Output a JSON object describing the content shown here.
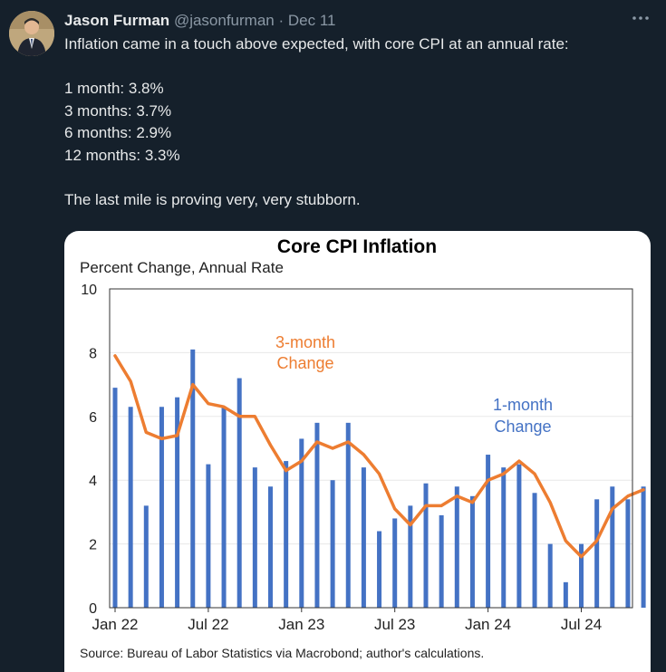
{
  "tweet": {
    "author_name": "Jason Furman",
    "handle": "@jasonfurman",
    "separator": "·",
    "date": "Dec 11",
    "more_icon": "ellipsis-icon",
    "text": {
      "line1": "Inflation came in a touch above expected, with core CPI at an annual rate:",
      "stats": [
        "1 month: 3.8%",
        "3 months: 3.7%",
        "6 months: 2.9%",
        "12 months: 3.3%"
      ],
      "closing": "The last mile is proving very, very stubborn."
    }
  },
  "chart_data": {
    "type": "bar",
    "title": "Core CPI Inflation",
    "subtitle": "Percent Change, Annual Rate",
    "source": "Source: Bureau of Labor Statistics via Macrobond; author's calculations.",
    "x_tick_labels": [
      "Jan 22",
      "Jul 22",
      "Jan 23",
      "Jul 23",
      "Jan 24",
      "Jul 24"
    ],
    "y_tick_labels": [
      "0",
      "2",
      "4",
      "6",
      "8",
      "10"
    ],
    "ylim": [
      0,
      10
    ],
    "months": [
      "Jan 22",
      "Feb 22",
      "Mar 22",
      "Apr 22",
      "May 22",
      "Jun 22",
      "Jul 22",
      "Aug 22",
      "Sep 22",
      "Oct 22",
      "Nov 22",
      "Dec 22",
      "Jan 23",
      "Feb 23",
      "Mar 23",
      "Apr 23",
      "May 23",
      "Jun 23",
      "Jul 23",
      "Aug 23",
      "Sep 23",
      "Oct 23",
      "Nov 23",
      "Dec 23",
      "Jan 24",
      "Feb 24",
      "Mar 24",
      "Apr 24",
      "May 24",
      "Jun 24",
      "Jul 24",
      "Aug 24",
      "Sep 24",
      "Oct 24",
      "Nov 24"
    ],
    "series": [
      {
        "name": "1-month Change",
        "label_lines": [
          "1-month",
          "Change"
        ],
        "kind": "bar",
        "color": "#4472c4",
        "values": [
          6.9,
          6.3,
          3.2,
          6.3,
          6.6,
          8.1,
          4.5,
          6.3,
          7.2,
          4.4,
          3.8,
          4.6,
          5.3,
          5.8,
          4.0,
          5.8,
          4.4,
          2.4,
          2.8,
          3.2,
          3.9,
          2.9,
          3.8,
          3.5,
          4.8,
          4.4,
          4.5,
          3.6,
          2.0,
          0.8,
          2.0,
          3.4,
          3.8,
          3.4,
          3.8
        ]
      },
      {
        "name": "3-month Change",
        "label_lines": [
          "3-month",
          "Change"
        ],
        "kind": "line",
        "color": "#ed7d31",
        "values": [
          7.9,
          7.1,
          5.5,
          5.3,
          5.4,
          7.0,
          6.4,
          6.3,
          6.0,
          6.0,
          5.1,
          4.3,
          4.6,
          5.2,
          5.0,
          5.2,
          4.8,
          4.2,
          3.1,
          2.6,
          3.2,
          3.2,
          3.5,
          3.3,
          4.0,
          4.2,
          4.6,
          4.2,
          3.3,
          2.1,
          1.6,
          2.1,
          3.1,
          3.5,
          3.7
        ]
      }
    ]
  }
}
